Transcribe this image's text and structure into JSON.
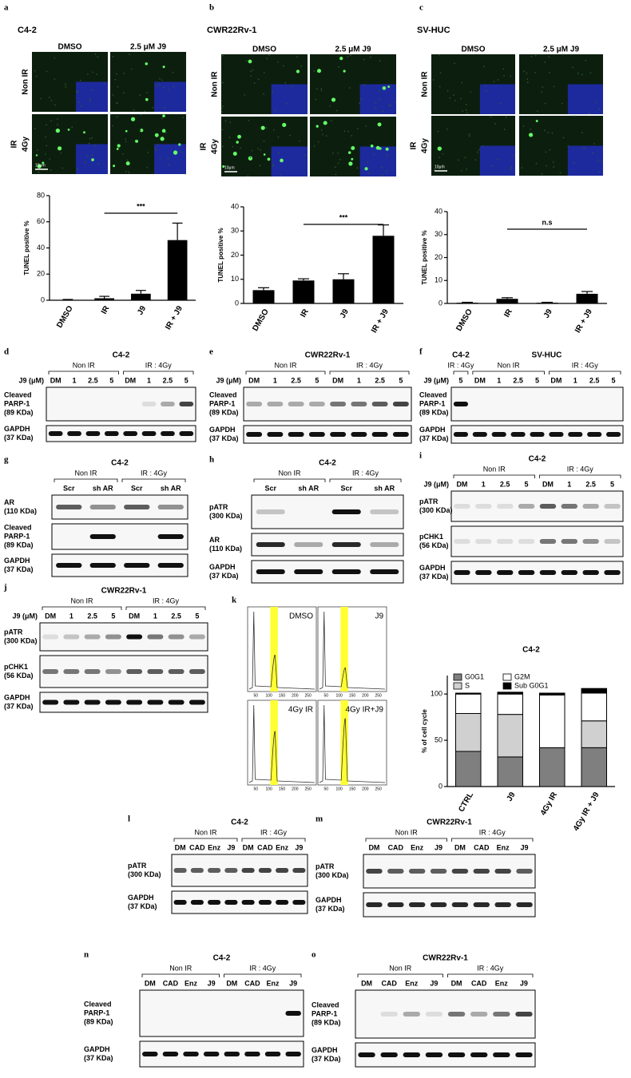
{
  "panels": {
    "a": {
      "letter": "a",
      "title": "C4-2",
      "col_labels": [
        "DMSO",
        "2.5 μM J9"
      ],
      "row_labels": [
        "Non IR",
        "IR",
        "4Gy"
      ],
      "scale_bar": "10μm"
    },
    "b": {
      "letter": "b",
      "title": "CWR22Rv-1",
      "col_labels": [
        "DMSO",
        "2.5 μM J9"
      ],
      "row_labels": [
        "Non IR",
        "IR",
        "4Gy"
      ],
      "scale_bar": "10μm"
    },
    "c": {
      "letter": "c",
      "title": "SV-HUC",
      "col_labels": [
        "DMSO",
        "2.5 μM J9"
      ],
      "row_labels": [
        "Non IR",
        "IR",
        "4Gy"
      ],
      "scale_bar": "10μm"
    },
    "d": {
      "letter": "d",
      "title": "C4-2",
      "lane_header": "J9 (μM)",
      "groups": [
        {
          "label": "Non IR",
          "lanes": [
            "DM",
            "1",
            "2.5",
            "5"
          ]
        },
        {
          "label": "IR : 4Gy",
          "lanes": [
            "DM",
            "1",
            "2.5",
            "5"
          ]
        }
      ],
      "rows": [
        [
          "Cleaved",
          "PARP-1",
          "(89 KDa)"
        ],
        [
          "GAPDH",
          "(37 KDa)"
        ]
      ]
    },
    "e": {
      "letter": "e",
      "title": "CWR22Rv-1",
      "lane_header": "J9 (μM)",
      "groups": [
        {
          "label": "Non IR",
          "lanes": [
            "DM",
            "1",
            "2.5",
            "5"
          ]
        },
        {
          "label": "IR : 4Gy",
          "lanes": [
            "DM",
            "1",
            "2.5",
            "5"
          ]
        }
      ],
      "rows": [
        [
          "Cleaved",
          "PARP-1",
          "(89 KDa)"
        ],
        [
          "GAPDH",
          "(37 KDa)"
        ]
      ]
    },
    "f": {
      "letter": "f",
      "title": "SV-HUC",
      "lane_header": "J9 (μM)",
      "groups": [
        {
          "title": "C4-2",
          "label": "IR : 4Gy",
          "lanes": [
            "5"
          ]
        },
        {
          "label": "Non IR",
          "lanes": [
            "DM",
            "1",
            "2.5",
            "5"
          ]
        },
        {
          "label": "IR : 4Gy",
          "lanes": [
            "DM",
            "1",
            "2.5",
            "5"
          ]
        }
      ],
      "rows": [
        [
          "Cleaved",
          "PARP-1",
          "(89 KDa)"
        ],
        [
          "GAPDH",
          "(37 KDa)"
        ]
      ]
    },
    "g": {
      "letter": "g",
      "title": "C4-2",
      "groups": [
        {
          "label": "Non IR",
          "lanes": [
            "Scr",
            "sh AR"
          ]
        },
        {
          "label": "IR : 4Gy",
          "lanes": [
            "Scr",
            "sh AR"
          ]
        }
      ],
      "rows": [
        [
          "AR",
          "(110 KDa)"
        ],
        [
          "Cleaved",
          "PARP-1",
          "(89 KDa)"
        ],
        [
          "GAPDH",
          "(37 KDa)"
        ]
      ]
    },
    "h": {
      "letter": "h",
      "title": "C4-2",
      "groups": [
        {
          "label": "Non IR",
          "lanes": [
            "Scr",
            "sh AR"
          ]
        },
        {
          "label": "IR : 4Gy",
          "lanes": [
            "Scr",
            "sh AR"
          ]
        }
      ],
      "rows": [
        [
          "pATR",
          "(300 KDa)"
        ],
        [
          "AR",
          "(110 KDa)"
        ],
        [
          "GAPDH",
          "(37 KDa)"
        ]
      ]
    },
    "i": {
      "letter": "i",
      "title": "C4-2",
      "lane_header": "J9 (μM)",
      "groups": [
        {
          "label": "Non IR",
          "lanes": [
            "DM",
            "1",
            "2.5",
            "5"
          ]
        },
        {
          "label": "IR : 4Gy",
          "lanes": [
            "DM",
            "1",
            "2.5",
            "5"
          ]
        }
      ],
      "rows": [
        [
          "pATR",
          "(300 KDa)"
        ],
        [
          "pCHK1",
          "(56 KDa)"
        ],
        [
          "GAPDH",
          "(37 KDa)"
        ]
      ]
    },
    "j": {
      "letter": "j",
      "title": "CWR22Rv-1",
      "lane_header": "J9 (μM)",
      "groups": [
        {
          "label": "Non IR",
          "lanes": [
            "DM",
            "1",
            "2.5",
            "5"
          ]
        },
        {
          "label": "IR : 4Gy",
          "lanes": [
            "DM",
            "1",
            "2.5",
            "5"
          ]
        }
      ],
      "rows": [
        [
          "pATR",
          "(300 KDa)"
        ],
        [
          "pCHK1",
          "(56 KDa)"
        ],
        [
          "GAPDH",
          "(37 KDa)"
        ]
      ]
    },
    "k": {
      "letter": "k",
      "flow_labels": [
        "DMSO",
        "J9",
        "4Gy IR",
        "4Gy IR+J9"
      ],
      "flow_xticks": [
        "50",
        "100",
        "150",
        "200",
        "250"
      ]
    },
    "l": {
      "letter": "l",
      "title": "C4-2",
      "groups": [
        {
          "label": "Non IR",
          "lanes": [
            "DM",
            "CAD",
            "Enz",
            "J9"
          ]
        },
        {
          "label": "IR : 4Gy",
          "lanes": [
            "DM",
            "CAD",
            "Enz",
            "J9"
          ]
        }
      ],
      "rows": [
        [
          "pATR",
          "(300 KDa)"
        ],
        [
          "GAPDH",
          "(37 KDa)"
        ]
      ]
    },
    "m": {
      "letter": "m",
      "title": "CWR22Rv-1",
      "groups": [
        {
          "label": "Non IR",
          "lanes": [
            "DM",
            "CAD",
            "Enz",
            "J9"
          ]
        },
        {
          "label": "IR : 4Gy",
          "lanes": [
            "DM",
            "CAD",
            "Enz",
            "J9"
          ]
        }
      ],
      "rows": [
        [
          "pATR",
          "(300 KDa)"
        ],
        [
          "GAPDH",
          "(37 KDa)"
        ]
      ]
    },
    "n": {
      "letter": "n",
      "title": "C4-2",
      "groups": [
        {
          "label": "Non IR",
          "lanes": [
            "DM",
            "CAD",
            "Enz",
            "J9"
          ]
        },
        {
          "label": "IR : 4Gy",
          "lanes": [
            "DM",
            "CAD",
            "Enz",
            "J9"
          ]
        }
      ],
      "rows": [
        [
          "Cleaved",
          "PARP-1",
          "(89 KDa)"
        ],
        [
          "GAPDH",
          "(37 KDa)"
        ]
      ]
    },
    "o": {
      "letter": "o",
      "title": "CWR22Rv-1",
      "groups": [
        {
          "label": "Non IR",
          "lanes": [
            "DM",
            "CAD",
            "Enz",
            "J9"
          ]
        },
        {
          "label": "IR : 4Gy",
          "lanes": [
            "DM",
            "CAD",
            "Enz",
            "J9"
          ]
        }
      ],
      "rows": [
        [
          "Cleaved",
          "PARP-1",
          "(89 KDa)"
        ],
        [
          "GAPDH",
          "(37 KDa)"
        ]
      ]
    }
  },
  "chart_data": [
    {
      "type": "bar",
      "categories": [
        "DMSO",
        "IR",
        "J9",
        "IR + J9"
      ],
      "values": [
        0.3,
        1.5,
        5,
        46
      ],
      "errors": [
        0.3,
        1.5,
        2.5,
        13
      ],
      "color": "#000000",
      "ylabel": "TUNEL positive %",
      "ylim": [
        0,
        80
      ],
      "yticks": [
        0,
        20,
        40,
        60,
        80
      ],
      "annotation": "***"
    },
    {
      "type": "bar",
      "categories": [
        "DMSO",
        "IR",
        "J9",
        "IR + J9"
      ],
      "values": [
        5.5,
        9.5,
        10,
        28
      ],
      "errors": [
        1,
        0.7,
        2.3,
        4.5
      ],
      "color": "#000000",
      "ylabel": "TUNEL positive %",
      "ylim": [
        0,
        40
      ],
      "yticks": [
        0,
        10,
        20,
        30,
        40
      ],
      "annotation": "***"
    },
    {
      "type": "bar",
      "categories": [
        "DMSO",
        "IR",
        "J9",
        "IR + J9"
      ],
      "values": [
        0.3,
        2,
        0.3,
        4.2
      ],
      "errors": [
        0.2,
        0.5,
        0.2,
        1
      ],
      "color": "#000000",
      "ylabel": "TUNEL positive %",
      "ylim": [
        0,
        40
      ],
      "yticks": [
        0,
        10,
        20,
        30,
        40
      ],
      "annotation": "n.s"
    },
    {
      "type": "stacked_bar",
      "title": "C4-2",
      "categories": [
        "CTRL",
        "J9",
        "4Gy IR",
        "4Gy IR + J9"
      ],
      "series": [
        {
          "name": "G0G1",
          "color": "#7f7f7f",
          "values": [
            38,
            32,
            42,
            42
          ]
        },
        {
          "name": "S",
          "color": "#d0d0d0",
          "values": [
            41,
            46,
            0,
            29
          ]
        },
        {
          "name": "G2M",
          "color": "#ffffff",
          "values": [
            21,
            22,
            57,
            30
          ]
        },
        {
          "name": "Sub G0G1",
          "color": "#000000",
          "values": [
            1,
            2,
            2,
            5
          ]
        }
      ],
      "ylabel": "% of cell cycle",
      "ylim": [
        0,
        120
      ],
      "yticks": [
        0,
        50,
        100
      ],
      "legend": "top-left"
    }
  ]
}
